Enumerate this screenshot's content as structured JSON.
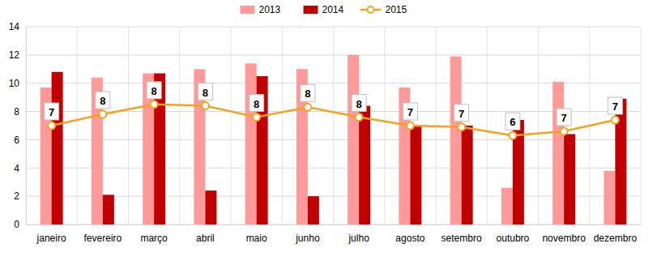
{
  "chart_data": {
    "type": "bar",
    "categories": [
      "janeiro",
      "fevereiro",
      "março",
      "abril",
      "maio",
      "junho",
      "julho",
      "agosto",
      "setembro",
      "outubro",
      "novembro",
      "dezembro"
    ],
    "series": [
      {
        "name": "2013",
        "type": "bar",
        "color": "#ff9a9a",
        "values": [
          9.7,
          10.4,
          10.7,
          11.0,
          11.4,
          11.0,
          12.0,
          9.7,
          11.9,
          2.6,
          10.1,
          3.8
        ]
      },
      {
        "name": "2014",
        "type": "bar",
        "color": "#c00000",
        "values": [
          10.8,
          2.1,
          10.7,
          2.4,
          10.5,
          2.0,
          8.4,
          7.0,
          7.0,
          7.4,
          6.4,
          8.9
        ]
      },
      {
        "name": "2015",
        "type": "line",
        "color": "#f4a21c",
        "marker": "circle",
        "data_labels": true,
        "values": [
          7.0,
          7.8,
          8.5,
          8.4,
          7.6,
          8.3,
          7.6,
          7.0,
          6.9,
          6.3,
          6.6,
          7.4
        ],
        "value_labels": [
          "7",
          "8",
          "8",
          "8",
          "8",
          "8",
          "8",
          "7",
          "7",
          "6",
          "7",
          "7"
        ]
      }
    ],
    "ylim": [
      0,
      14
    ],
    "yticks": [
      0,
      2,
      4,
      6,
      8,
      10,
      12,
      14
    ],
    "grid": true,
    "legend": "top"
  }
}
